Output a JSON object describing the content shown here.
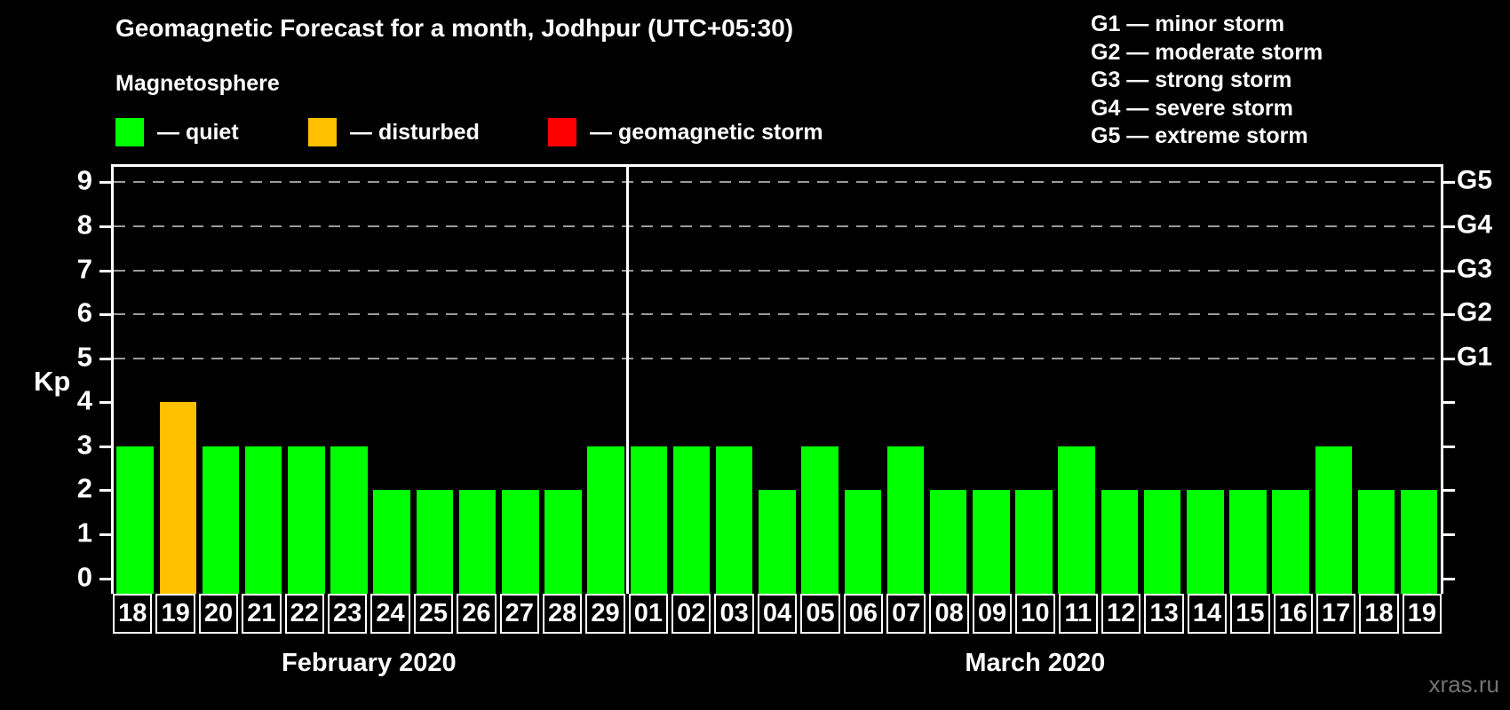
{
  "header": {
    "title": "Geomagnetic Forecast for a month, Jodhpur (UTC+05:30)",
    "subtitle": "Magnetosphere"
  },
  "legend": {
    "items": [
      {
        "name": "quiet",
        "label": "— quiet",
        "color": "#00ff00",
        "x": 130
      },
      {
        "name": "disturbed",
        "label": "— disturbed",
        "color": "#ffc000",
        "x": 347
      },
      {
        "name": "storm",
        "label": "— geomagnetic storm",
        "color": "#ff0000",
        "x": 617
      }
    ]
  },
  "storm_scale_legend": {
    "items": [
      "G1 — minor storm",
      "G2 — moderate storm",
      "G3 — strong storm",
      "G4 — severe storm",
      "G5 — extreme storm"
    ]
  },
  "chart_data": {
    "type": "bar",
    "title": "Geomagnetic Forecast for a month, Jodhpur (UTC+05:30)",
    "ylabel": "Kp",
    "ylim": [
      -0.35,
      9.35
    ],
    "yticks": [
      0,
      1,
      2,
      3,
      4,
      5,
      6,
      7,
      8,
      9
    ],
    "gridlines_at": [
      5,
      6,
      7,
      8,
      9
    ],
    "grid_style": "dashed",
    "legend_position": "top",
    "right_axis": [
      {
        "value": 5,
        "label": "G1"
      },
      {
        "value": 6,
        "label": "G2"
      },
      {
        "value": 7,
        "label": "G3"
      },
      {
        "value": 8,
        "label": "G4"
      },
      {
        "value": 9,
        "label": "G5"
      }
    ],
    "status_colors": {
      "quiet": "#00ff00",
      "disturbed": "#ffc000",
      "storm": "#ff0000"
    },
    "months": [
      {
        "label": "February 2020",
        "days": [
          {
            "day": "18",
            "kp": 3,
            "status": "quiet"
          },
          {
            "day": "19",
            "kp": 4,
            "status": "disturbed"
          },
          {
            "day": "20",
            "kp": 3,
            "status": "quiet"
          },
          {
            "day": "21",
            "kp": 3,
            "status": "quiet"
          },
          {
            "day": "22",
            "kp": 3,
            "status": "quiet"
          },
          {
            "day": "23",
            "kp": 3,
            "status": "quiet"
          },
          {
            "day": "24",
            "kp": 2,
            "status": "quiet"
          },
          {
            "day": "25",
            "kp": 2,
            "status": "quiet"
          },
          {
            "day": "26",
            "kp": 2,
            "status": "quiet"
          },
          {
            "day": "27",
            "kp": 2,
            "status": "quiet"
          },
          {
            "day": "28",
            "kp": 2,
            "status": "quiet"
          },
          {
            "day": "29",
            "kp": 3,
            "status": "quiet"
          }
        ]
      },
      {
        "label": "March 2020",
        "days": [
          {
            "day": "01",
            "kp": 3,
            "status": "quiet"
          },
          {
            "day": "02",
            "kp": 3,
            "status": "quiet"
          },
          {
            "day": "03",
            "kp": 3,
            "status": "quiet"
          },
          {
            "day": "04",
            "kp": 2,
            "status": "quiet"
          },
          {
            "day": "05",
            "kp": 3,
            "status": "quiet"
          },
          {
            "day": "06",
            "kp": 2,
            "status": "quiet"
          },
          {
            "day": "07",
            "kp": 3,
            "status": "quiet"
          },
          {
            "day": "08",
            "kp": 2,
            "status": "quiet"
          },
          {
            "day": "09",
            "kp": 2,
            "status": "quiet"
          },
          {
            "day": "10",
            "kp": 2,
            "status": "quiet"
          },
          {
            "day": "11",
            "kp": 3,
            "status": "quiet"
          },
          {
            "day": "12",
            "kp": 2,
            "status": "quiet"
          },
          {
            "day": "13",
            "kp": 2,
            "status": "quiet"
          },
          {
            "day": "14",
            "kp": 2,
            "status": "quiet"
          },
          {
            "day": "15",
            "kp": 2,
            "status": "quiet"
          },
          {
            "day": "16",
            "kp": 2,
            "status": "quiet"
          },
          {
            "day": "17",
            "kp": 3,
            "status": "quiet"
          },
          {
            "day": "18",
            "kp": 2,
            "status": "quiet"
          },
          {
            "day": "19",
            "kp": 2,
            "status": "quiet"
          }
        ]
      }
    ]
  },
  "watermark": "xras.ru"
}
